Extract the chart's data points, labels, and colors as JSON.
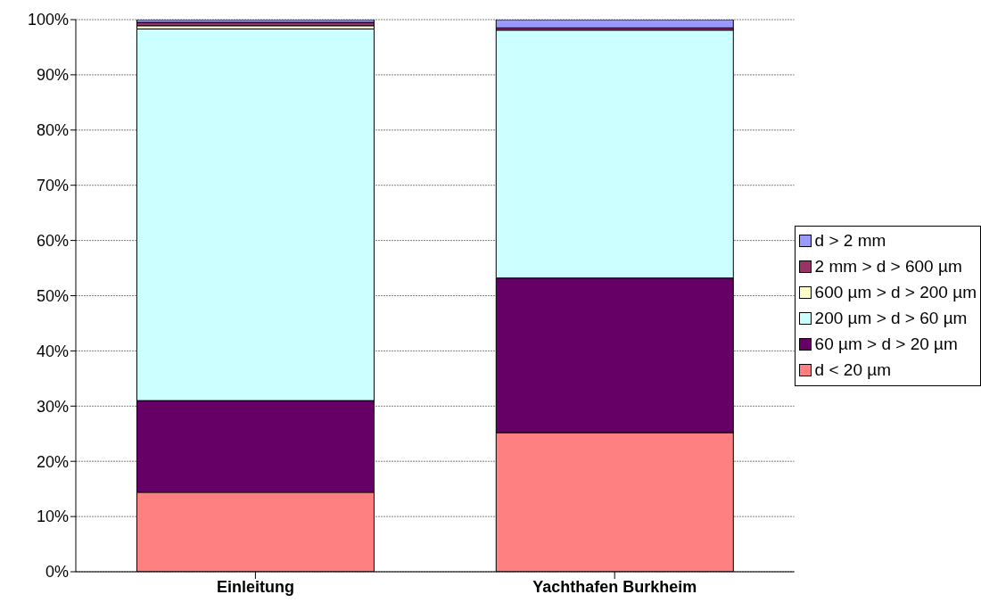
{
  "chart_data": {
    "type": "bar",
    "stacked": true,
    "categories": [
      "Einleitung",
      "Yachthafen Burkheim"
    ],
    "series": [
      {
        "name": "d < 20 µm",
        "color": "#ff8080",
        "values": [
          14.4,
          25.2
        ]
      },
      {
        "name": "60 µm > d > 20 µm",
        "color": "#660066",
        "values": [
          16.6,
          28.0
        ]
      },
      {
        "name": "200 µm > d > 60 µm",
        "color": "#ccffff",
        "values": [
          67.3,
          44.9
        ]
      },
      {
        "name": "600 µm > d > 200 µm",
        "color": "#ffffcc",
        "values": [
          0.6,
          0
        ]
      },
      {
        "name": "2 mm > d > 600 µm",
        "color": "#993366",
        "values": [
          0.6,
          0.4
        ]
      },
      {
        "name": "d > 2 mm",
        "color": "#9999ff",
        "values": [
          0.5,
          1.5
        ]
      }
    ],
    "ylim": [
      0,
      100
    ],
    "yticks": [
      {
        "value": 0,
        "label": "0%"
      },
      {
        "value": 10,
        "label": "10%"
      },
      {
        "value": 20,
        "label": "20%"
      },
      {
        "value": 30,
        "label": "30%"
      },
      {
        "value": 40,
        "label": "40%"
      },
      {
        "value": 50,
        "label": "50%"
      },
      {
        "value": 60,
        "label": "60%"
      },
      {
        "value": 70,
        "label": "70%"
      },
      {
        "value": 80,
        "label": "80%"
      },
      {
        "value": 90,
        "label": "90%"
      },
      {
        "value": 100,
        "label": "100%"
      }
    ],
    "grid": "y",
    "legend": "right"
  }
}
